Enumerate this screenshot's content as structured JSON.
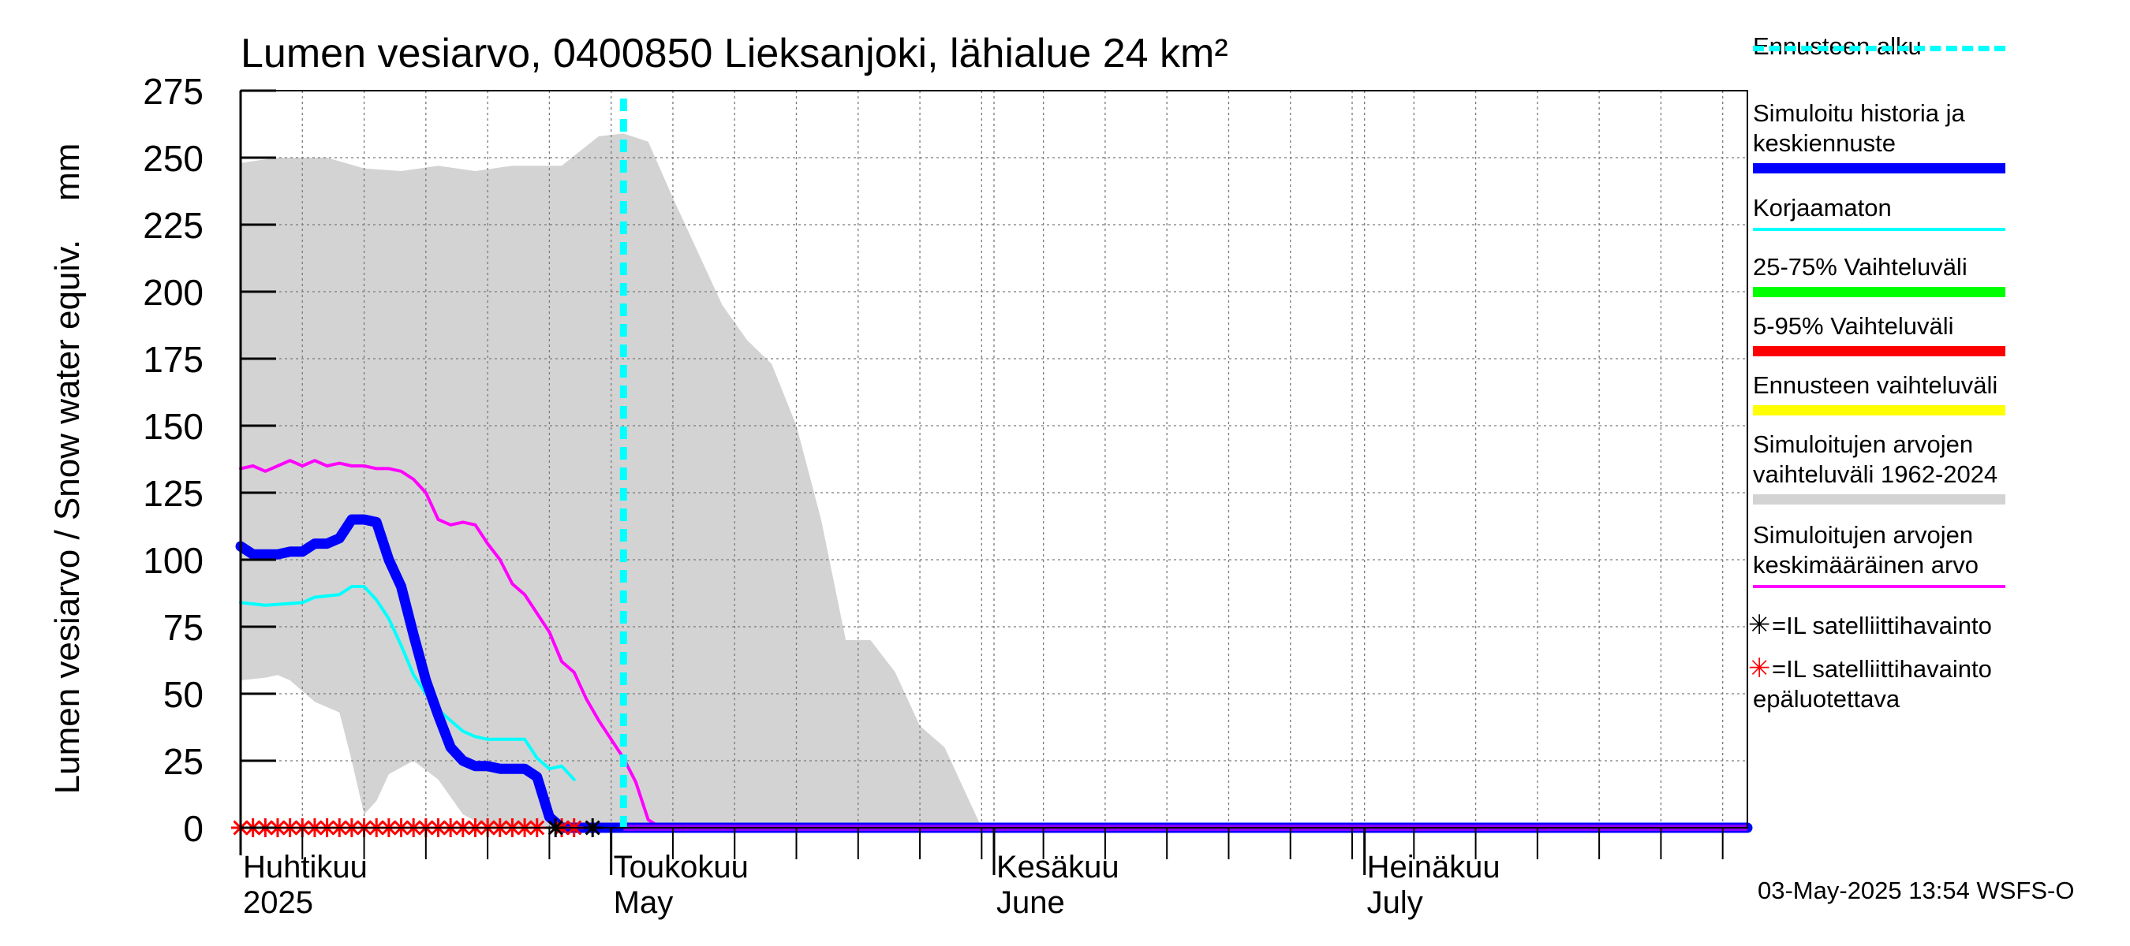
{
  "chart_data": {
    "type": "area",
    "title": "Lumen vesiarvo, 0400850 Lieksanjoki, lähialue 24 km²",
    "ylabel": "Lumen vesiarvo / Snow water equiv.    mm",
    "ylim": [
      0,
      275
    ],
    "yticks": [
      "0",
      "25",
      "50",
      "75",
      "100",
      "125",
      "150",
      "175",
      "200",
      "225",
      "250",
      "275"
    ],
    "xlim_days": [
      0,
      122
    ],
    "month_labels": [
      {
        "fi": "Huhtikuu",
        "en": "2025",
        "day": 0
      },
      {
        "fi": "Toukokuu",
        "en": "May",
        "day": 30
      },
      {
        "fi": "Kesäkuu",
        "en": "June",
        "day": 61
      },
      {
        "fi": "Heinäkuu",
        "en": "July",
        "day": 91
      }
    ],
    "forecast_start_day": 31,
    "series": [
      {
        "name": "Simuloitujen arvojen vaihteluväli 1962-2024",
        "color": "#d3d3d3",
        "upper": [
          [
            0,
            248
          ],
          [
            3,
            250
          ],
          [
            7,
            250
          ],
          [
            10,
            246
          ],
          [
            13,
            245
          ],
          [
            16,
            247
          ],
          [
            19,
            245
          ],
          [
            22,
            247
          ],
          [
            26,
            247
          ],
          [
            29,
            258
          ],
          [
            31,
            259
          ],
          [
            33,
            256
          ],
          [
            35,
            235
          ],
          [
            37,
            215
          ],
          [
            39,
            195
          ],
          [
            41,
            182
          ],
          [
            43,
            173
          ],
          [
            45,
            150
          ],
          [
            47,
            115
          ],
          [
            49,
            70
          ],
          [
            51,
            70
          ],
          [
            53,
            58
          ],
          [
            55,
            38
          ],
          [
            57,
            30
          ],
          [
            59,
            10
          ],
          [
            60,
            0
          ],
          [
            122,
            0
          ]
        ],
        "lower": [
          [
            0,
            55
          ],
          [
            2,
            56
          ],
          [
            3,
            57
          ],
          [
            4,
            55
          ],
          [
            6,
            47
          ],
          [
            8,
            43
          ],
          [
            9,
            25
          ],
          [
            10,
            5
          ],
          [
            11,
            10
          ],
          [
            12,
            20
          ],
          [
            14,
            25
          ],
          [
            16,
            18
          ],
          [
            18,
            5
          ],
          [
            20,
            0
          ],
          [
            122,
            0
          ]
        ]
      },
      {
        "name": "Simuloitujen arvojen keskimääräinen arvo",
        "color": "#ff00ff",
        "points": [
          [
            0,
            134
          ],
          [
            1,
            135
          ],
          [
            2,
            133
          ],
          [
            3,
            135
          ],
          [
            4,
            137
          ],
          [
            5,
            135
          ],
          [
            6,
            137
          ],
          [
            7,
            135
          ],
          [
            8,
            136
          ],
          [
            9,
            135
          ],
          [
            10,
            135
          ],
          [
            11,
            134
          ],
          [
            12,
            134
          ],
          [
            13,
            133
          ],
          [
            14,
            130
          ],
          [
            15,
            125
          ],
          [
            16,
            115
          ],
          [
            17,
            113
          ],
          [
            18,
            114
          ],
          [
            19,
            113
          ],
          [
            20,
            106
          ],
          [
            21,
            100
          ],
          [
            22,
            91
          ],
          [
            23,
            87
          ],
          [
            24,
            80
          ],
          [
            25,
            73
          ],
          [
            26,
            62
          ],
          [
            27,
            58
          ],
          [
            28,
            48
          ],
          [
            29,
            40
          ],
          [
            30,
            33
          ],
          [
            31,
            26
          ],
          [
            32,
            17
          ],
          [
            33,
            3
          ],
          [
            34,
            0
          ],
          [
            122,
            0
          ]
        ]
      },
      {
        "name": "Korjaamaton",
        "color": "#00ffff",
        "points": [
          [
            0,
            84
          ],
          [
            2,
            83
          ],
          [
            5,
            84
          ],
          [
            6,
            86
          ],
          [
            8,
            87
          ],
          [
            9,
            90
          ],
          [
            10,
            90
          ],
          [
            11,
            85
          ],
          [
            12,
            78
          ],
          [
            13,
            68
          ],
          [
            14,
            57
          ],
          [
            15,
            50
          ],
          [
            16,
            44
          ],
          [
            17,
            40
          ],
          [
            18,
            36
          ],
          [
            19,
            34
          ],
          [
            20,
            33
          ],
          [
            22,
            33
          ],
          [
            23,
            33
          ],
          [
            24,
            26
          ],
          [
            25,
            22
          ],
          [
            26,
            23
          ],
          [
            27,
            18
          ]
        ]
      },
      {
        "name": "Simuloitu historia ja keskiennuste",
        "color": "#0000ff",
        "points": [
          [
            0,
            105
          ],
          [
            1,
            102
          ],
          [
            2,
            102
          ],
          [
            3,
            102
          ],
          [
            4,
            103
          ],
          [
            5,
            103
          ],
          [
            6,
            106
          ],
          [
            7,
            106
          ],
          [
            8,
            108
          ],
          [
            9,
            115
          ],
          [
            10,
            115
          ],
          [
            11,
            114
          ],
          [
            12,
            100
          ],
          [
            13,
            90
          ],
          [
            14,
            72
          ],
          [
            15,
            55
          ],
          [
            16,
            42
          ],
          [
            17,
            30
          ],
          [
            18,
            25
          ],
          [
            19,
            23
          ],
          [
            20,
            23
          ],
          [
            21,
            22
          ],
          [
            22,
            22
          ],
          [
            23,
            22
          ],
          [
            24,
            19
          ],
          [
            25,
            4
          ],
          [
            26,
            0
          ],
          [
            122,
            0
          ]
        ]
      }
    ],
    "satellite_obs": {
      "reliable_days": [
        25.5,
        28.5
      ],
      "unreliable_days": [
        0,
        1,
        2,
        3,
        4,
        5,
        6,
        7,
        8,
        9,
        10,
        11,
        12,
        13,
        14,
        15,
        16,
        17,
        18,
        19,
        20,
        21,
        22,
        23,
        24,
        26,
        27
      ]
    }
  },
  "legend": [
    {
      "label": "Ennusteen alku",
      "color": "#00ffff",
      "style": "dashed"
    },
    {
      "label": "Simuloitu historia ja\nkeskiennuste",
      "color": "#0000ff",
      "style": "thick"
    },
    {
      "label": "Korjaamaton",
      "color": "#00ffff",
      "style": "thin"
    },
    {
      "label": "25-75% Vaihteluväli",
      "color": "#00ff00",
      "style": "band"
    },
    {
      "label": "5-95% Vaihteluväli",
      "color": "#ff0000",
      "style": "band"
    },
    {
      "label": "Ennusteen vaihteluväli",
      "color": "#ffff00",
      "style": "band"
    },
    {
      "label": "Simuloitujen arvojen\nvaihteluväli 1962-2024",
      "color": "#d3d3d3",
      "style": "band"
    },
    {
      "label": "Simuloitujen arvojen\nkeskimääräinen arvo",
      "color": "#ff00ff",
      "style": "thin"
    },
    {
      "label": "=IL satelliittihavainto",
      "color": "#000000",
      "style": "star"
    },
    {
      "label": "=IL satelliittihavainto\nepäluotettava",
      "color": "#ff0000",
      "style": "star"
    }
  ],
  "footer": "03-May-2025 13:54 WSFS-O"
}
